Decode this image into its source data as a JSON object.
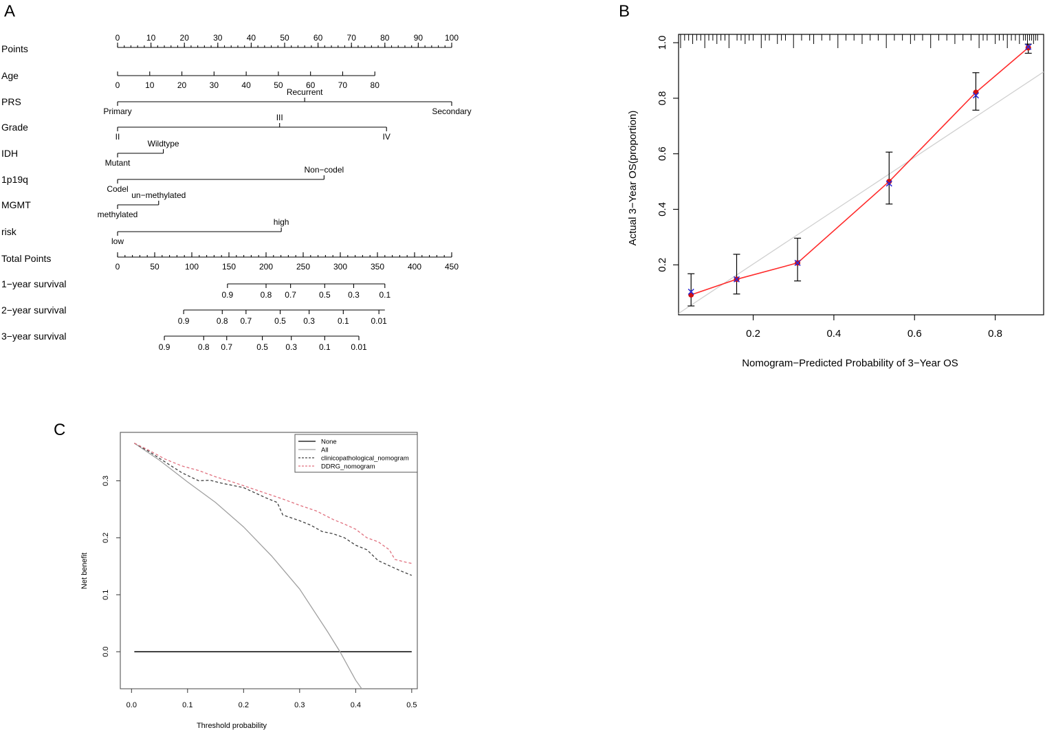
{
  "panels": {
    "a": "A",
    "b": "B",
    "c": "C"
  },
  "chart_data": [
    {
      "type": "nomogram",
      "panel": "A",
      "rows": [
        {
          "label": "Points",
          "kind": "axis",
          "min": 0,
          "max": 100,
          "major": [
            0,
            10,
            20,
            30,
            40,
            50,
            60,
            70,
            80,
            90,
            100
          ],
          "minor_step": 2
        },
        {
          "label": "Age",
          "kind": "numeric",
          "points_range": [
            0,
            77
          ],
          "tick_labels": [
            "0",
            "10",
            "20",
            "30",
            "40",
            "50",
            "60",
            "70",
            "80"
          ],
          "tick_values": [
            0,
            10,
            20,
            30,
            40,
            50,
            60,
            70,
            80
          ],
          "value_min": 0,
          "value_max": 80
        },
        {
          "label": "PRS",
          "kind": "categorical",
          "points_end": 100,
          "levels": [
            {
              "name": "Primary",
              "points": 0,
              "side": "below"
            },
            {
              "name": "Recurrent",
              "points": 56,
              "side": "above"
            },
            {
              "name": "Secondary",
              "points": 100,
              "side": "below"
            }
          ]
        },
        {
          "label": "Grade",
          "kind": "categorical",
          "points_end": 80.5,
          "levels": [
            {
              "name": "II",
              "points": 0,
              "side": "below"
            },
            {
              "name": "III",
              "points": 48.5,
              "side": "above"
            },
            {
              "name": "IV",
              "points": 80.5,
              "side": "below"
            }
          ]
        },
        {
          "label": "IDH",
          "kind": "categorical",
          "points_end": 13.7,
          "levels": [
            {
              "name": "Mutant",
              "points": 0,
              "side": "below"
            },
            {
              "name": "Wildtype",
              "points": 13.7,
              "side": "above"
            }
          ]
        },
        {
          "label": "1p19q",
          "kind": "categorical",
          "points_end": 61.8,
          "levels": [
            {
              "name": "Codel",
              "points": 0,
              "side": "below"
            },
            {
              "name": "Non−codel",
              "points": 61.8,
              "side": "above"
            }
          ]
        },
        {
          "label": "MGMT",
          "kind": "categorical",
          "points_end": 12.3,
          "levels": [
            {
              "name": "methylated",
              "points": 0,
              "side": "below"
            },
            {
              "name": "un−methylated",
              "points": 12.3,
              "side": "above"
            }
          ]
        },
        {
          "label": "risk",
          "kind": "categorical",
          "points_end": 49,
          "levels": [
            {
              "name": "low",
              "points": 0,
              "side": "below"
            },
            {
              "name": "high",
              "points": 49,
              "side": "above"
            }
          ]
        },
        {
          "label": "Total Points",
          "kind": "axis",
          "min": 0,
          "max": 450,
          "major": [
            0,
            50,
            100,
            150,
            200,
            250,
            300,
            350,
            400,
            450
          ],
          "minor_step": 10
        },
        {
          "label": "1−year survival",
          "kind": "survival",
          "total_range": [
            148,
            360
          ],
          "ticks": [
            {
              "text": "0.9",
              "total": 148
            },
            {
              "text": "0.8",
              "total": 200
            },
            {
              "text": "0.7",
              "total": 233
            },
            {
              "text": "0.5",
              "total": 279
            },
            {
              "text": "0.3",
              "total": 318
            },
            {
              "text": "0.1",
              "total": 360
            }
          ]
        },
        {
          "label": "2−year survival",
          "kind": "survival",
          "total_range": [
            89,
            360
          ],
          "ticks": [
            {
              "text": "0.9",
              "total": 89
            },
            {
              "text": "0.8",
              "total": 141
            },
            {
              "text": "0.7",
              "total": 173
            },
            {
              "text": "0.5",
              "total": 219
            },
            {
              "text": "0.3",
              "total": 258
            },
            {
              "text": "0.1",
              "total": 304
            },
            {
              "text": "0.01",
              "total": 352
            }
          ]
        },
        {
          "label": "3−year survival",
          "kind": "survival",
          "total_range": [
            63,
            325
          ],
          "ticks": [
            {
              "text": "0.9",
              "total": 63
            },
            {
              "text": "0.8",
              "total": 116
            },
            {
              "text": "0.7",
              "total": 147
            },
            {
              "text": "0.5",
              "total": 195
            },
            {
              "text": "0.3",
              "total": 234
            },
            {
              "text": "0.1",
              "total": 279
            },
            {
              "text": "0.01",
              "total": 325
            }
          ]
        }
      ]
    },
    {
      "type": "calibration",
      "panel": "B",
      "xlabel": "Nomogram−Predicted Probability of 3−Year OS",
      "ylabel": "Actual 3−Year OS(proportion)",
      "xlim": [
        0.015,
        0.92
      ],
      "ylim": [
        0.02,
        1.03
      ],
      "xticks": [
        0.2,
        0.4,
        0.6,
        0.8
      ],
      "yticks": [
        0.2,
        0.4,
        0.6,
        0.8,
        1.0
      ],
      "ideal_line": [
        [
          0.015,
          0.025
        ],
        [
          0.92,
          0.895
        ]
      ],
      "points": [
        {
          "x": 0.046,
          "observed": 0.092,
          "corrected": 0.103,
          "lower": 0.052,
          "upper": 0.168
        },
        {
          "x": 0.159,
          "observed": 0.148,
          "corrected": 0.148,
          "lower": 0.095,
          "upper": 0.238
        },
        {
          "x": 0.31,
          "observed": 0.207,
          "corrected": 0.207,
          "lower": 0.142,
          "upper": 0.296
        },
        {
          "x": 0.537,
          "observed": 0.5,
          "corrected": 0.493,
          "lower": 0.419,
          "upper": 0.606
        },
        {
          "x": 0.752,
          "observed": 0.821,
          "corrected": 0.81,
          "lower": 0.757,
          "upper": 0.892
        },
        {
          "x": 0.882,
          "observed": 0.982,
          "corrected": 0.985,
          "lower": 0.962,
          "upper": 0.995
        }
      ],
      "rug": [
        0.02,
        0.03,
        0.04,
        0.05,
        0.06,
        0.07,
        0.08,
        0.09,
        0.1,
        0.11,
        0.12,
        0.13,
        0.14,
        0.16,
        0.17,
        0.18,
        0.19,
        0.2,
        0.22,
        0.23,
        0.24,
        0.26,
        0.27,
        0.28,
        0.3,
        0.32,
        0.34,
        0.35,
        0.37,
        0.39,
        0.41,
        0.43,
        0.45,
        0.47,
        0.49,
        0.51,
        0.53,
        0.55,
        0.57,
        0.59,
        0.6,
        0.62,
        0.64,
        0.66,
        0.68,
        0.7,
        0.72,
        0.74,
        0.76,
        0.77,
        0.78,
        0.8,
        0.81,
        0.82,
        0.83,
        0.84,
        0.85,
        0.86,
        0.87,
        0.875,
        0.88,
        0.885,
        0.89,
        0.895,
        0.9,
        0.905
      ]
    },
    {
      "type": "line",
      "panel": "C",
      "xlabel": "Threshold probability",
      "ylabel": "Net benefit",
      "xlim": [
        -0.02,
        0.51
      ],
      "ylim": [
        -0.065,
        0.385
      ],
      "xticks": [
        0.0,
        0.1,
        0.2,
        0.3,
        0.4,
        0.5
      ],
      "yticks": [
        0.0,
        0.1,
        0.2,
        0.3
      ],
      "xtick_labels": [
        "0.0",
        "0.1",
        "0.2",
        "0.3",
        "0.4",
        "0.5"
      ],
      "ytick_labels": [
        "0.0",
        "0.1",
        "0.2",
        "0.3"
      ],
      "legend_position": "top-right",
      "series": [
        {
          "name": "None",
          "color": "#000000",
          "dash": "solid",
          "x": [
            0.005,
            0.5
          ],
          "y": [
            0.0,
            0.0
          ]
        },
        {
          "name": "All",
          "color": "#a0a0a0",
          "dash": "solid",
          "x": [
            0.005,
            0.05,
            0.1,
            0.15,
            0.2,
            0.25,
            0.3,
            0.35,
            0.372,
            0.4,
            0.413
          ],
          "y": [
            0.366,
            0.336,
            0.298,
            0.262,
            0.219,
            0.168,
            0.11,
            0.035,
            0.0,
            -0.05,
            -0.068
          ]
        },
        {
          "name": "clinicopathological_nomogram",
          "color": "#404040",
          "dash": "dashed",
          "x": [
            0.005,
            0.03,
            0.06,
            0.09,
            0.12,
            0.14,
            0.16,
            0.2,
            0.24,
            0.26,
            0.27,
            0.3,
            0.32,
            0.34,
            0.36,
            0.38,
            0.4,
            0.42,
            0.44,
            0.46,
            0.48,
            0.5
          ],
          "y": [
            0.366,
            0.352,
            0.333,
            0.314,
            0.3,
            0.301,
            0.296,
            0.288,
            0.27,
            0.262,
            0.24,
            0.23,
            0.222,
            0.211,
            0.207,
            0.2,
            0.187,
            0.179,
            0.16,
            0.151,
            0.142,
            0.134
          ]
        },
        {
          "name": "DDRG_nomogram",
          "color": "#e06f7d",
          "dash": "dashed",
          "x": [
            0.005,
            0.03,
            0.06,
            0.09,
            0.12,
            0.15,
            0.18,
            0.21,
            0.24,
            0.27,
            0.3,
            0.33,
            0.36,
            0.38,
            0.4,
            0.42,
            0.44,
            0.46,
            0.47,
            0.49,
            0.5
          ],
          "y": [
            0.366,
            0.354,
            0.338,
            0.326,
            0.318,
            0.307,
            0.298,
            0.288,
            0.278,
            0.268,
            0.257,
            0.247,
            0.232,
            0.224,
            0.215,
            0.2,
            0.193,
            0.179,
            0.162,
            0.157,
            0.155
          ]
        }
      ]
    }
  ]
}
